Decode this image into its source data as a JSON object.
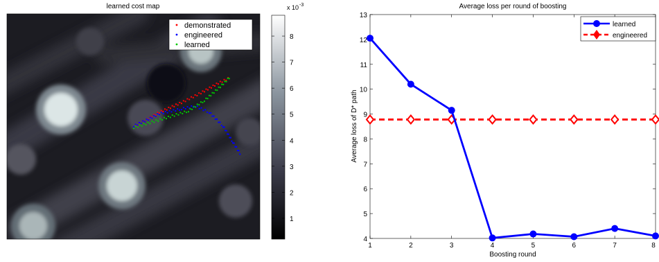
{
  "chart_data": [
    {
      "type": "heatmap",
      "title": "learned cost map",
      "colorbar": {
        "range": [
          0.0002,
          0.0088
        ],
        "ticks": [
          1,
          2,
          3,
          4,
          5,
          6,
          7,
          8
        ],
        "exponent_base": "x 10",
        "exponent_power": "-3"
      },
      "legend_position": "top-right",
      "legend": [
        {
          "label": "demonstrated",
          "color": "#ff0000"
        },
        {
          "label": "engineered",
          "color": "#0000ff"
        },
        {
          "label": "learned",
          "color": "#00c800"
        }
      ]
    },
    {
      "type": "line",
      "title": "Average loss per round of boosting",
      "xlabel": "Boosting round",
      "ylabel": "Average loss of D* path",
      "xlim": [
        1,
        8
      ],
      "ylim": [
        4,
        13
      ],
      "x": [
        1,
        2,
        3,
        4,
        5,
        6,
        7,
        8
      ],
      "xticks": [
        1,
        2,
        3,
        4,
        5,
        6,
        7,
        8
      ],
      "yticks": [
        4,
        5,
        6,
        7,
        8,
        9,
        10,
        11,
        12,
        13
      ],
      "legend_position": "top-right",
      "series": [
        {
          "name": "learned",
          "color": "#0000ff",
          "marker": "circle",
          "style": "solid",
          "values": [
            12.05,
            10.2,
            9.15,
            4.02,
            4.18,
            4.07,
            4.4,
            4.1
          ]
        },
        {
          "name": "engineered",
          "color": "#ff0000",
          "marker": "diamond",
          "style": "dashed",
          "values": [
            8.78,
            8.78,
            8.78,
            8.78,
            8.78,
            8.78,
            8.78,
            8.78
          ]
        }
      ]
    }
  ]
}
